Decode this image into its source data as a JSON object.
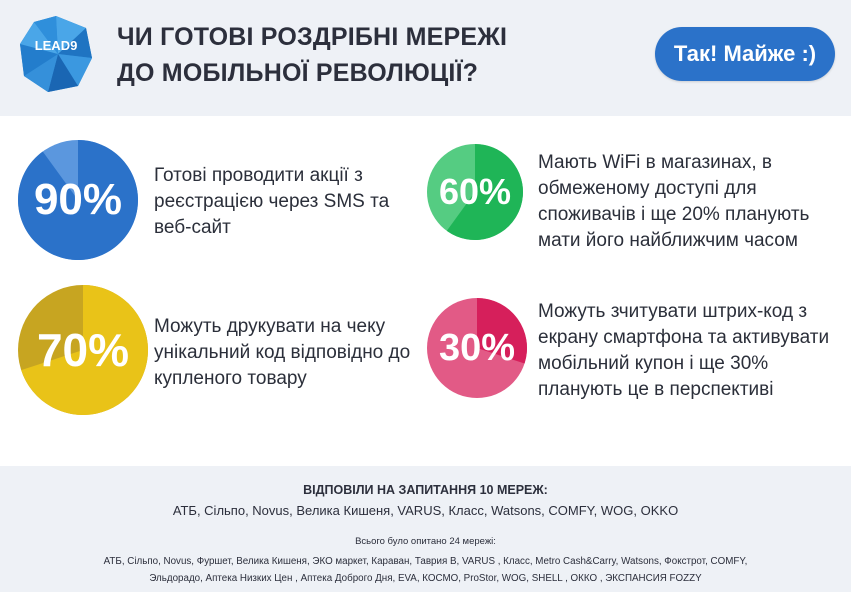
{
  "logo": {
    "text": "LEAD9"
  },
  "header": {
    "title_line1": "ЧИ ГОТОВІ РОЗДРІБНІ МЕРЕЖІ",
    "title_line2": "ДО МОБІЛЬНОЇ РЕВОЛЮЦІЇ?",
    "cta_label": "Так! Майже :)"
  },
  "colors": {
    "blue": "#2b72c9",
    "blue_light": "#5b97de",
    "green": "#1fb557",
    "green_light": "#55cc82",
    "yellow": "#e9c318",
    "yellow_dark": "#c7a521",
    "pink": "#d61f5b",
    "pink_light": "#e25a86",
    "panel_bg": "#eef1f6"
  },
  "stats": [
    {
      "value": 90,
      "label": "90%",
      "lines": [
        "Готові проводити акції з",
        "реєстрацією через SMS  та",
        "веб-сайт"
      ]
    },
    {
      "value": 60,
      "label": "60%",
      "lines": [
        "Мають WiFi в магазинах, в",
        "обмеженому доступі для",
        "споживачів і ще 20% планують",
        "мати його найближчим часом"
      ]
    },
    {
      "value": 70,
      "label": "70%",
      "lines": [
        "Можуть друкувати на чеку",
        "унікальний код відповідно до",
        "купленого товару"
      ]
    },
    {
      "value": 30,
      "label": "30%",
      "lines": [
        "Можуть зчитувати штрих-код з",
        "екрану смартфона та активувати",
        "мобільний купон і ще 30%",
        "планують це в перспективі"
      ]
    }
  ],
  "footer": {
    "answered_title": "ВІДПОВІЛИ НА ЗАПИТАННЯ 10 МЕРЕЖ:",
    "answered_list": "АТБ, Сільпо, Novus, Велика Кишеня, VARUS, Класс, Watsons, COMFY, WOG, OKKO",
    "surveyed_title": "Всього було опитано 24 мережі:",
    "surveyed_line1": "АТБ, Сільпо, Novus, Фуршет, Велика Кишеня, ЭКО маркет, Караван, Таврия В, VARUS , Класс, Metro Cash&Carry, Watsons, Фокстрот, COMFY,",
    "surveyed_line2": "Эльдорадо,  Аптека Низких Цен , Аптека Доброго Дня, EVA, КОСМО, ProStor, WOG, SHELL , ОККО , ЭКСПАНСИЯ FOZZY"
  }
}
